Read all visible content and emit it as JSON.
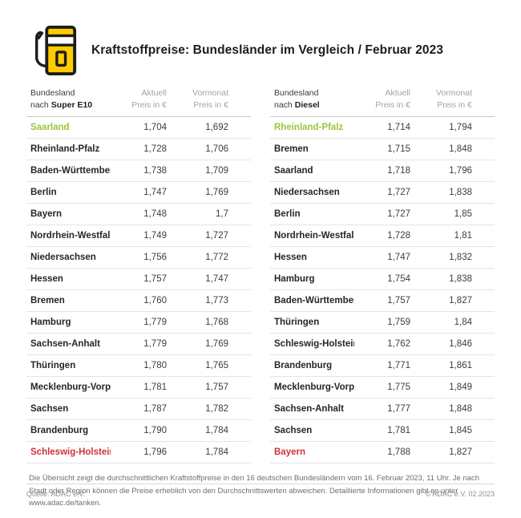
{
  "header": {
    "title": "Kraftstoffpreise: Bundesländer im Vergleich / Februar 2023",
    "icon": "fuel-pump-icon"
  },
  "labels": {
    "bundesland": "Bundesland",
    "nach": "nach",
    "aktuell": "Aktuell",
    "vormonat": "Vormonat",
    "preis_in_euro": "Preis in €"
  },
  "colors": {
    "adac_yellow": "#ffcc00",
    "highlight_green": "#9ac43c",
    "highlight_red": "#cd3333",
    "text_dark": "#1d1d1b",
    "text_gray": "#a3a3a3"
  },
  "chart_data": [
    {
      "type": "table",
      "title": "Bundesland nach Super E10",
      "fuel": "Super E10",
      "columns": [
        "Bundesland",
        "Aktuell Preis in €",
        "Vormonat Preis in €"
      ],
      "rows": [
        {
          "state": "Saarland",
          "current": "1,704",
          "previous": "1,692",
          "highlight": "green"
        },
        {
          "state": "Rheinland-Pfalz",
          "current": "1,728",
          "previous": "1,706",
          "highlight": "none"
        },
        {
          "state": "Baden-Württemberg",
          "current": "1,738",
          "previous": "1,709",
          "highlight": "none"
        },
        {
          "state": "Berlin",
          "current": "1,747",
          "previous": "1,769",
          "highlight": "none"
        },
        {
          "state": "Bayern",
          "current": "1,748",
          "previous": "1,7",
          "highlight": "none"
        },
        {
          "state": "Nordrhein-Westfalen",
          "current": "1,749",
          "previous": "1,727",
          "highlight": "none"
        },
        {
          "state": "Niedersachsen",
          "current": "1,756",
          "previous": "1,772",
          "highlight": "none"
        },
        {
          "state": "Hessen",
          "current": "1,757",
          "previous": "1,747",
          "highlight": "none"
        },
        {
          "state": "Bremen",
          "current": "1,760",
          "previous": "1,773",
          "highlight": "none"
        },
        {
          "state": "Hamburg",
          "current": "1,779",
          "previous": "1,768",
          "highlight": "none"
        },
        {
          "state": "Sachsen-Anhalt",
          "current": "1,779",
          "previous": "1,769",
          "highlight": "none"
        },
        {
          "state": "Thüringen",
          "current": "1,780",
          "previous": "1,765",
          "highlight": "none"
        },
        {
          "state": "Mecklenburg-Vorpommern",
          "current": "1,781",
          "previous": "1,757",
          "highlight": "none"
        },
        {
          "state": "Sachsen",
          "current": "1,787",
          "previous": "1,782",
          "highlight": "none"
        },
        {
          "state": "Brandenburg",
          "current": "1,790",
          "previous": "1,784",
          "highlight": "none"
        },
        {
          "state": "Schleswig-Holstein",
          "current": "1,796",
          "previous": "1,784",
          "highlight": "red"
        }
      ]
    },
    {
      "type": "table",
      "title": "Bundesland nach Diesel",
      "fuel": "Diesel",
      "columns": [
        "Bundesland",
        "Aktuell Preis in €",
        "Vormonat Preis in €"
      ],
      "rows": [
        {
          "state": "Rheinland-Pfalz",
          "current": "1,714",
          "previous": "1,794",
          "highlight": "green"
        },
        {
          "state": "Bremen",
          "current": "1,715",
          "previous": "1,848",
          "highlight": "none"
        },
        {
          "state": "Saarland",
          "current": "1,718",
          "previous": "1,796",
          "highlight": "none"
        },
        {
          "state": "Niedersachsen",
          "current": "1,727",
          "previous": "1,838",
          "highlight": "none"
        },
        {
          "state": "Berlin",
          "current": "1,727",
          "previous": "1,85",
          "highlight": "none"
        },
        {
          "state": "Nordrhein-Westfalen",
          "current": "1,728",
          "previous": "1,81",
          "highlight": "none"
        },
        {
          "state": "Hessen",
          "current": "1,747",
          "previous": "1,832",
          "highlight": "none"
        },
        {
          "state": "Hamburg",
          "current": "1,754",
          "previous": "1,838",
          "highlight": "none"
        },
        {
          "state": "Baden-Württemberg",
          "current": "1,757",
          "previous": "1,827",
          "highlight": "none"
        },
        {
          "state": "Thüringen",
          "current": "1,759",
          "previous": "1,84",
          "highlight": "none"
        },
        {
          "state": "Schleswig-Holstein",
          "current": "1,762",
          "previous": "1,846",
          "highlight": "none"
        },
        {
          "state": "Brandenburg",
          "current": "1,771",
          "previous": "1,861",
          "highlight": "none"
        },
        {
          "state": "Mecklenburg-Vorpommern",
          "current": "1,775",
          "previous": "1,849",
          "highlight": "none"
        },
        {
          "state": "Sachsen-Anhalt",
          "current": "1,777",
          "previous": "1,848",
          "highlight": "none"
        },
        {
          "state": "Sachsen",
          "current": "1,781",
          "previous": "1,845",
          "highlight": "none"
        },
        {
          "state": "Bayern",
          "current": "1,788",
          "previous": "1,827",
          "highlight": "red"
        }
      ]
    }
  ],
  "footnote": {
    "text": "Die Übersicht zeigt die durchschnittlichen Kraftstoffpreise in den 16 deutschen Bundesländern vom 16. Februar 2023, 11 Uhr. Je nach Stadt oder Region können die Preise erheblich von den Durchschnittswerten abweichen. Detaillierte Informationen gibt es unter www.adac.de/tanken."
  },
  "footer": {
    "source": "Quelle: ADAC e.V.",
    "copyright": "© ADAC e.V. 02.2023"
  }
}
